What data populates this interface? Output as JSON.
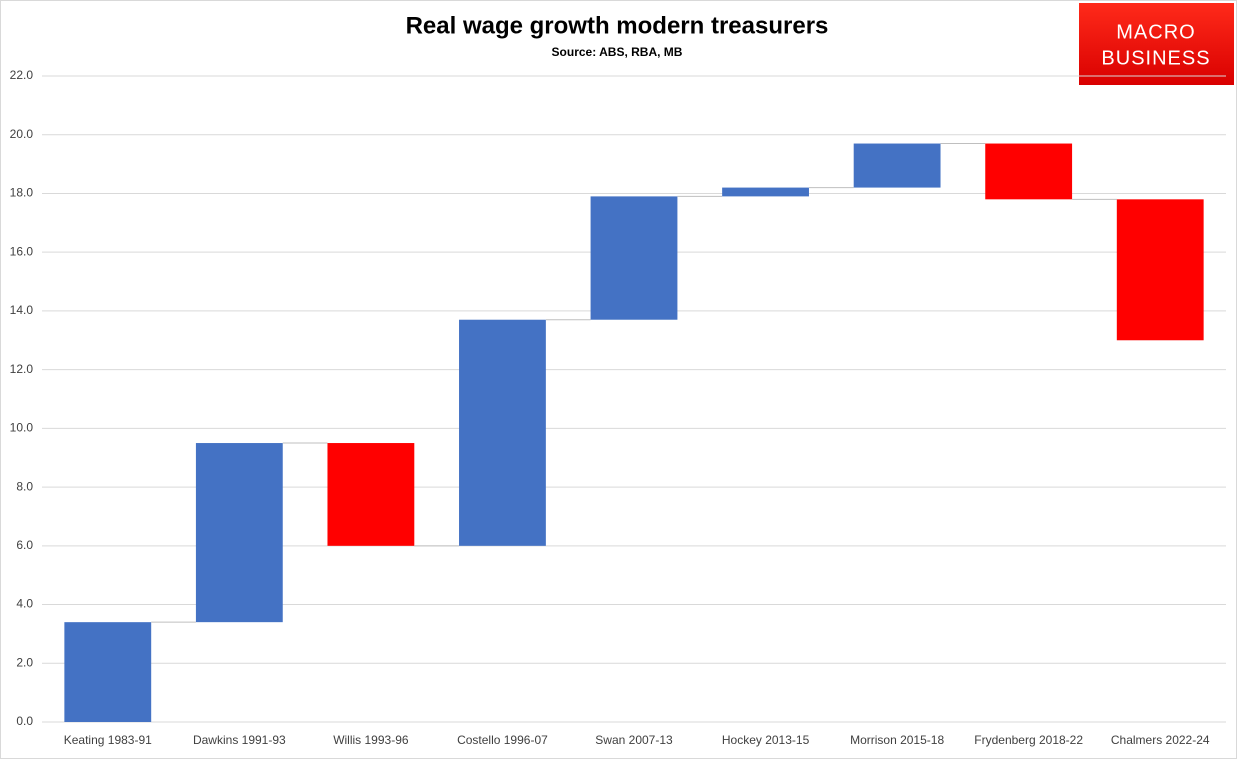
{
  "chart_data": {
    "type": "waterfall",
    "title": "Real wage growth modern treasurers",
    "subtitle": "Source: ABS, RBA, MB",
    "logo": [
      "MACRO",
      "BUSINESS"
    ],
    "categories": [
      "Keating 1983-91",
      "Dawkins 1991-93",
      "Willis 1993-96",
      "Costello 1996-07",
      "Swan 2007-13",
      "Hockey 2013-15",
      "Morrison 2015-18",
      "Frydenberg 2018-22",
      "Chalmers 2022-24"
    ],
    "values": [
      3.4,
      6.1,
      -3.5,
      7.7,
      4.2,
      0.3,
      1.5,
      -1.9,
      -4.8
    ],
    "increase_color": "#4472c4",
    "decrease_color": "#ff0000",
    "ylim": [
      0,
      22
    ],
    "yticks": [
      {
        "value": 0,
        "label": "0.0"
      },
      {
        "value": 2,
        "label": "2.0"
      },
      {
        "value": 4,
        "label": "4.0"
      },
      {
        "value": 6,
        "label": "6.0"
      },
      {
        "value": 8,
        "label": "8.0"
      },
      {
        "value": 10,
        "label": "10.0"
      },
      {
        "value": 12,
        "label": "12.0"
      },
      {
        "value": 14,
        "label": "14.0"
      },
      {
        "value": 16,
        "label": "16.0"
      },
      {
        "value": 18,
        "label": "18.0"
      },
      {
        "value": 20,
        "label": "20.0"
      },
      {
        "value": 22,
        "label": "22.0"
      }
    ],
    "grid": true
  }
}
